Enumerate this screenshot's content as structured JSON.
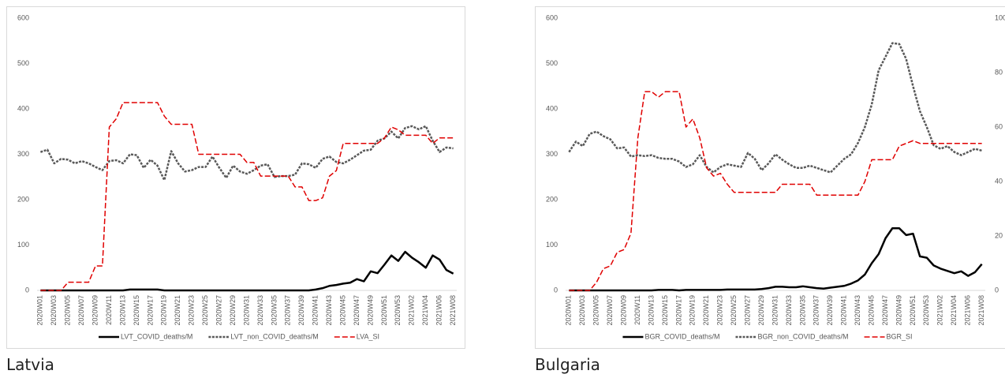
{
  "chart_data": [
    {
      "type": "line",
      "caption": "Latvia",
      "categories": [
        "2020W01",
        null,
        "2020W03",
        null,
        "2020W05",
        null,
        "2020W07",
        null,
        "2020W09",
        null,
        "2020W11",
        null,
        "2020W13",
        null,
        "2020W15",
        null,
        "2020W17",
        null,
        "2020W19",
        null,
        "2020W21",
        null,
        "2020W23",
        null,
        "2020W25",
        null,
        "2020W27",
        null,
        "2020W29",
        null,
        "2020W31",
        null,
        "2020W33",
        null,
        "2020W35",
        null,
        "2020W37",
        null,
        "2020W39",
        null,
        "2020W41",
        null,
        "2020W43",
        null,
        "2020W45",
        null,
        "2020W47",
        null,
        "2020W49",
        null,
        "2020W51",
        null,
        "2020W53",
        null,
        "2021W02",
        null,
        "2021W04",
        null,
        "2021W06",
        null,
        "2021W08"
      ],
      "ylim": [
        0,
        600
      ],
      "yticks": [
        0,
        100,
        200,
        300,
        400,
        500,
        600
      ],
      "y2lim": [
        0,
        100
      ],
      "y2ticks": [
        0,
        20,
        40,
        60,
        80,
        100
      ],
      "legend": "bottom",
      "series": [
        {
          "name": "LVT_COVID_deaths/M",
          "color": "#000000",
          "style": "solid",
          "values": [
            0,
            0,
            0,
            0,
            0,
            0,
            0,
            0,
            0,
            0,
            0,
            0,
            0,
            2,
            2,
            2,
            2,
            2,
            0,
            0,
            0,
            0,
            0,
            0,
            0,
            0,
            0,
            0,
            0,
            0,
            0,
            0,
            0,
            0,
            0,
            0,
            0,
            0,
            0,
            0,
            2,
            5,
            10,
            12,
            15,
            17,
            25,
            20,
            42,
            38,
            57,
            77,
            65,
            85,
            72,
            62,
            50,
            77,
            68,
            45,
            37
          ]
        },
        {
          "name": "LVT_non_COVID_deaths/M",
          "color": "#595959",
          "style": "dotted",
          "values": [
            305,
            310,
            280,
            290,
            288,
            280,
            285,
            280,
            272,
            265,
            285,
            287,
            280,
            300,
            298,
            270,
            288,
            275,
            243,
            307,
            280,
            262,
            265,
            272,
            272,
            295,
            270,
            248,
            275,
            262,
            257,
            265,
            275,
            278,
            250,
            252,
            252,
            255,
            280,
            278,
            270,
            290,
            295,
            283,
            280,
            288,
            298,
            308,
            310,
            330,
            335,
            350,
            335,
            358,
            362,
            355,
            362,
            330,
            305,
            315,
            313
          ]
        },
        {
          "name": "LVA_SI",
          "color": "#e00000",
          "style": "dashed",
          "axis": "y2",
          "values": [
            0,
            0,
            0,
            0,
            3,
            3,
            3,
            3,
            9,
            9,
            60,
            63,
            69,
            69,
            69,
            69,
            69,
            69,
            64,
            61,
            61,
            61,
            61,
            50,
            50,
            50,
            50,
            50,
            50,
            50,
            47,
            47,
            42,
            42,
            42,
            42,
            42,
            38,
            38,
            33,
            33,
            34,
            42,
            44,
            54,
            54,
            54,
            54,
            54,
            54,
            56,
            60,
            59,
            57,
            57,
            57,
            57,
            54,
            56,
            56,
            56
          ]
        }
      ]
    },
    {
      "type": "line",
      "caption": "Bulgaria",
      "categories": [
        "2020W01",
        null,
        "2020W03",
        null,
        "2020W05",
        null,
        "2020W07",
        null,
        "2020W09",
        null,
        "2020W11",
        null,
        "2020W13",
        null,
        "2020W15",
        null,
        "2020W17",
        null,
        "2020W19",
        null,
        "2020W21",
        null,
        "2020W23",
        null,
        "2020W25",
        null,
        "2020W27",
        null,
        "2020W29",
        null,
        "2020W31",
        null,
        "2020W33",
        null,
        "2020W35",
        null,
        "2020W37",
        null,
        "2020W39",
        null,
        "2020W41",
        null,
        "2020W43",
        null,
        "2020W45",
        null,
        "2020W47",
        null,
        "2020W49",
        null,
        "2020W51",
        null,
        "2020W53",
        null,
        "2021W02",
        null,
        "2021W04",
        null,
        "2021W06",
        null,
        "2021W08"
      ],
      "ylim": [
        0,
        600
      ],
      "yticks": [
        0,
        100,
        200,
        300,
        400,
        500,
        600
      ],
      "y2lim": [
        0,
        100
      ],
      "y2ticks": [
        0,
        20,
        40,
        60,
        80,
        100
      ],
      "legend": "bottom",
      "series": [
        {
          "name": "BGR_COVID_deaths/M",
          "color": "#000000",
          "style": "solid",
          "values": [
            0,
            0,
            0,
            0,
            0,
            0,
            0,
            0,
            0,
            0,
            0,
            0,
            0,
            1,
            1,
            1,
            0,
            1,
            1,
            1,
            1,
            1,
            1,
            2,
            2,
            2,
            2,
            2,
            3,
            5,
            8,
            8,
            7,
            7,
            9,
            7,
            5,
            4,
            6,
            8,
            10,
            15,
            22,
            35,
            60,
            80,
            115,
            137,
            137,
            122,
            125,
            75,
            72,
            55,
            48,
            43,
            38,
            42,
            32,
            40,
            58
          ]
        },
        {
          "name": "BGR_non_COVID_deaths/M",
          "color": "#595959",
          "style": "dotted",
          "values": [
            305,
            328,
            318,
            345,
            350,
            340,
            333,
            313,
            315,
            295,
            298,
            296,
            298,
            292,
            290,
            290,
            284,
            272,
            278,
            298,
            272,
            260,
            272,
            278,
            275,
            272,
            303,
            290,
            265,
            280,
            300,
            288,
            278,
            270,
            270,
            275,
            270,
            265,
            260,
            275,
            290,
            300,
            325,
            360,
            410,
            485,
            515,
            545,
            543,
            510,
            450,
            395,
            360,
            320,
            312,
            318,
            305,
            298,
            305,
            312,
            308
          ]
        },
        {
          "name": "BGR_SI",
          "color": "#e00000",
          "style": "dashed",
          "axis": "y2",
          "values": [
            0,
            0,
            0,
            0,
            3,
            8,
            9,
            14,
            15,
            21,
            56,
            73,
            73,
            71,
            73,
            73,
            73,
            60,
            63,
            56,
            45,
            42,
            43,
            39,
            36,
            36,
            36,
            36,
            36,
            36,
            36,
            39,
            39,
            39,
            39,
            39,
            35,
            35,
            35,
            35,
            35,
            35,
            35,
            40,
            48,
            48,
            48,
            48,
            53,
            54,
            55,
            54,
            54,
            54,
            54,
            54,
            54,
            54,
            54,
            54,
            54
          ]
        }
      ]
    }
  ]
}
